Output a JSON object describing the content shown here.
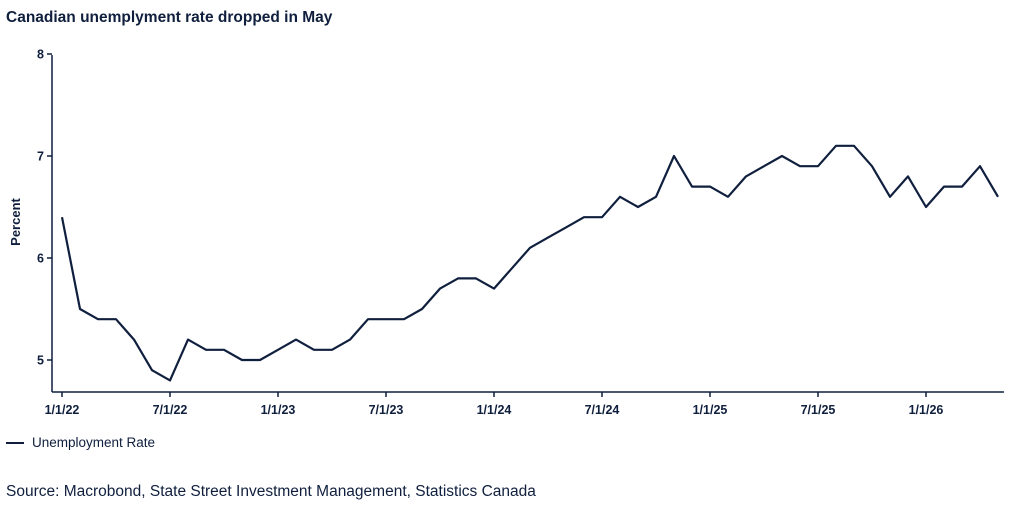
{
  "chart_data": {
    "type": "line",
    "title": "Canadian unemplyment rate dropped in May",
    "xlabel": "",
    "ylabel": "Percent",
    "ylim": [
      4.7,
      8
    ],
    "yticks": [
      5,
      6,
      7,
      8
    ],
    "xtick_labels": [
      "1/1/22",
      "7/1/22",
      "1/1/23",
      "7/1/23",
      "1/1/24",
      "7/1/24",
      "1/1/25",
      "7/1/25",
      "1/1/26"
    ],
    "grid": false,
    "legend_position": "bottom-left",
    "color": "#0f1f3d",
    "x": [
      "2022-01",
      "2022-02",
      "2022-03",
      "2022-04",
      "2022-05",
      "2022-06",
      "2022-07",
      "2022-08",
      "2022-09",
      "2022-10",
      "2022-11",
      "2022-12",
      "2023-01",
      "2023-02",
      "2023-03",
      "2023-04",
      "2023-05",
      "2023-06",
      "2023-07",
      "2023-08",
      "2023-09",
      "2023-10",
      "2023-11",
      "2023-12",
      "2024-01",
      "2024-02",
      "2024-03",
      "2024-04",
      "2024-05",
      "2024-06",
      "2024-07",
      "2024-08",
      "2024-09",
      "2024-10",
      "2024-11",
      "2024-12",
      "2025-01",
      "2025-02",
      "2025-03",
      "2025-04",
      "2025-05",
      "2025-06",
      "2025-07",
      "2025-08",
      "2025-09",
      "2025-10",
      "2025-11",
      "2025-12",
      "2026-01",
      "2026-02",
      "2026-03",
      "2026-04",
      "2026-05"
    ],
    "series": [
      {
        "name": "Unemployment Rate",
        "values": [
          6.4,
          5.5,
          5.4,
          5.4,
          5.2,
          4.9,
          4.8,
          5.2,
          5.1,
          5.1,
          5.0,
          5.0,
          5.1,
          5.2,
          5.1,
          5.1,
          5.2,
          5.4,
          5.4,
          5.4,
          5.5,
          5.7,
          5.8,
          5.8,
          5.7,
          5.9,
          6.1,
          6.2,
          6.3,
          6.4,
          6.4,
          6.6,
          6.5,
          6.6,
          7.0,
          6.7,
          6.7,
          6.6,
          6.8,
          6.9,
          7.0,
          6.9,
          6.9,
          7.1,
          7.1,
          6.9,
          6.6,
          6.8,
          6.5,
          6.7,
          6.7,
          6.9,
          6.6
        ]
      }
    ]
  },
  "legend": {
    "label": "Unemployment Rate"
  },
  "source": "Source: Macrobond, State Street Investment Management, Statistics Canada"
}
